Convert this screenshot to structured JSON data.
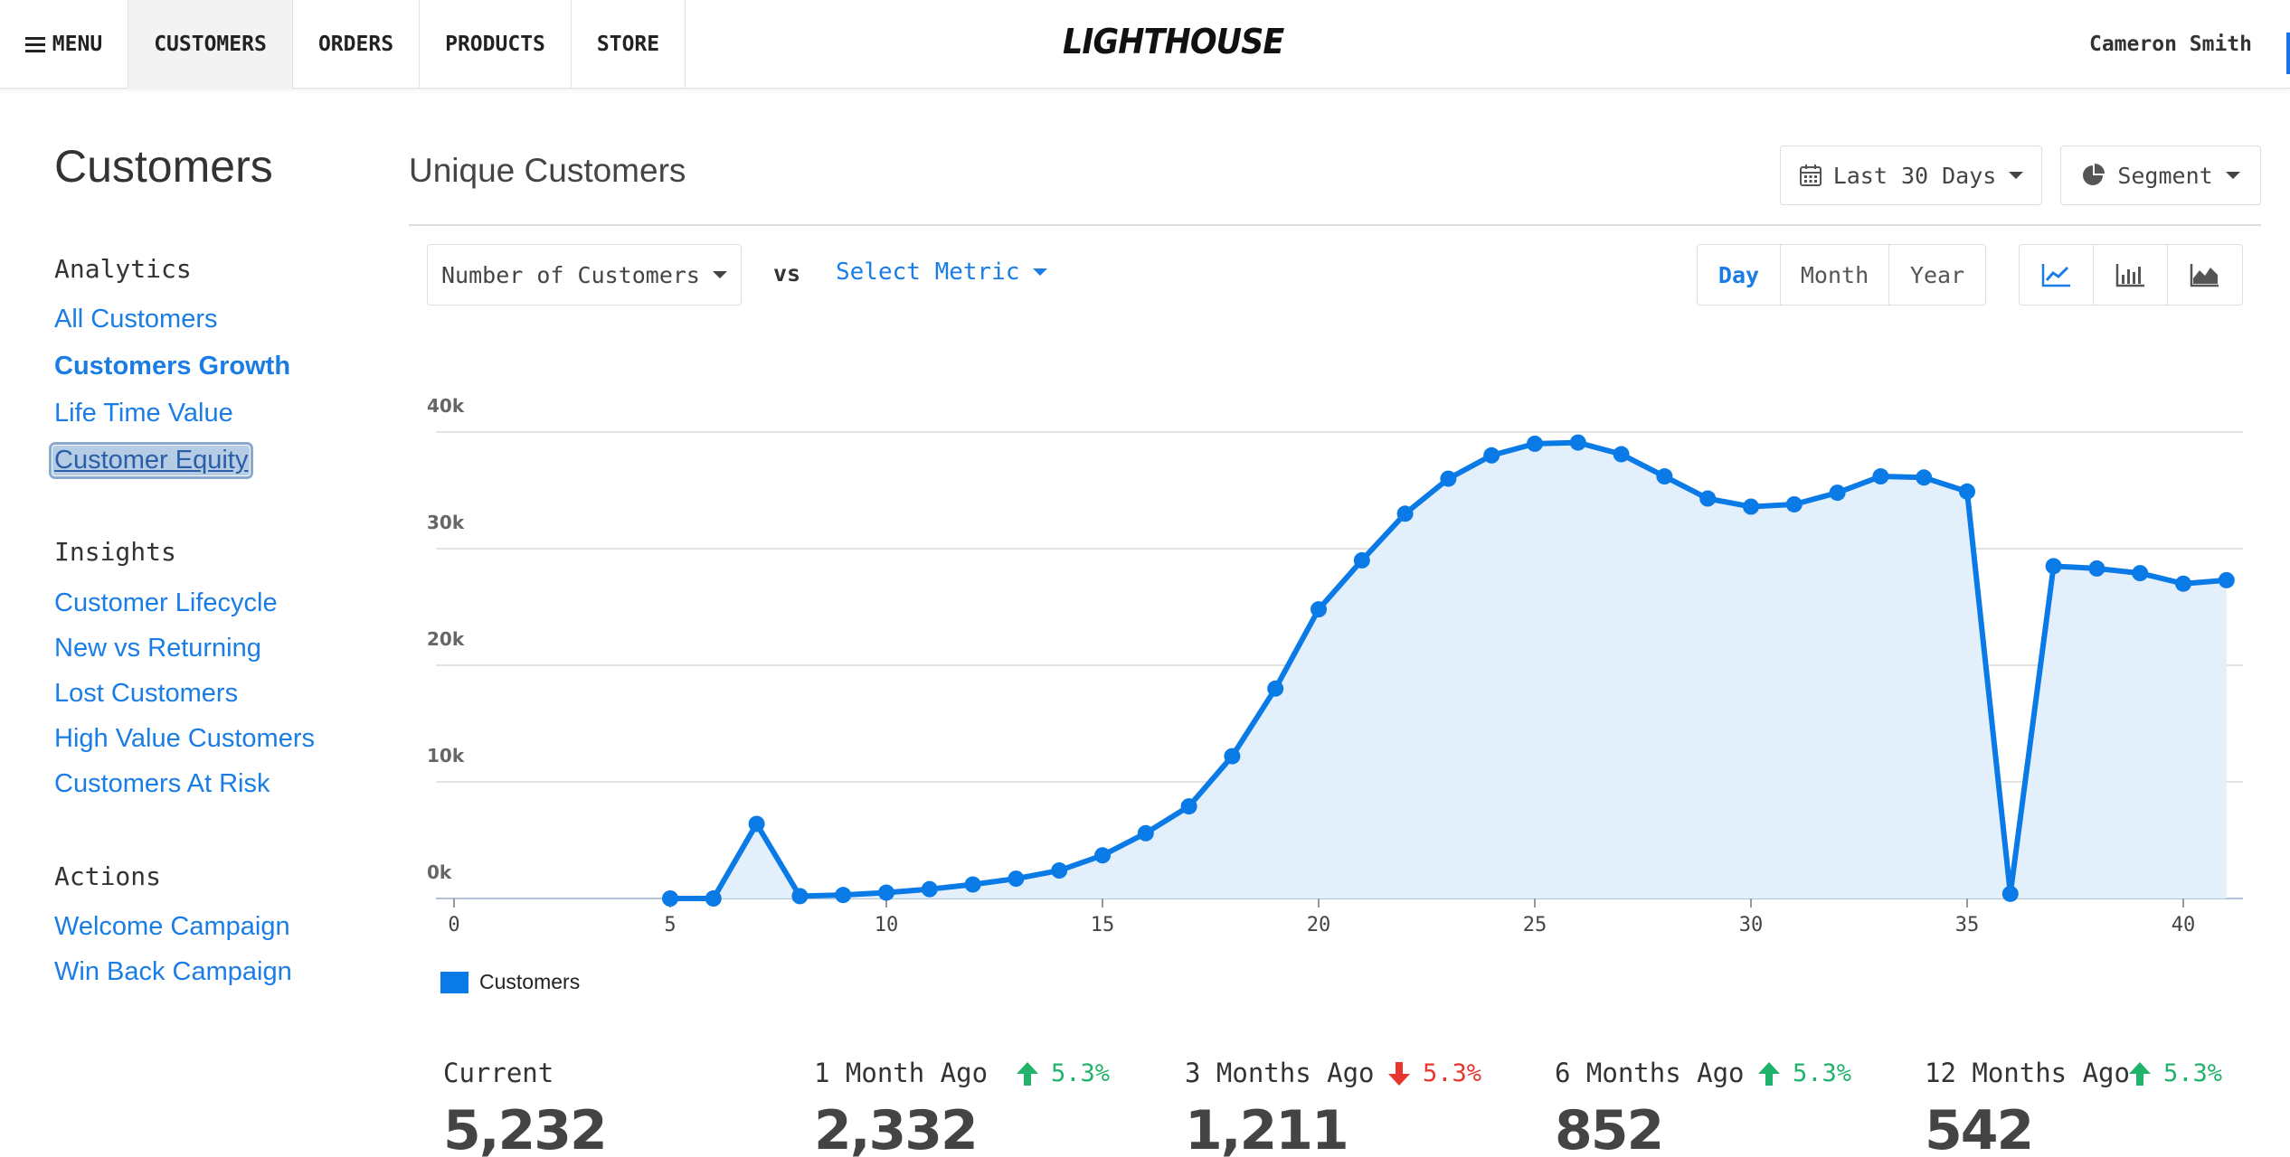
{
  "nav": {
    "menu_label": "MENU",
    "items": [
      {
        "label": "CUSTOMERS",
        "active": true
      },
      {
        "label": "ORDERS",
        "active": false
      },
      {
        "label": "PRODUCTS",
        "active": false
      },
      {
        "label": "STORE",
        "active": false
      }
    ],
    "logo": "LIGHTHOUSE",
    "user_name": "Cameron Smith"
  },
  "sidebar": {
    "title": "Customers",
    "sections": [
      {
        "heading": "Analytics",
        "links": [
          "All Customers",
          "Customers Growth",
          "Life Time Value",
          "Customer Equity"
        ]
      },
      {
        "heading": "Insights",
        "links": [
          "Customer Lifecycle",
          "New vs Returning",
          "Lost Customers",
          "High Value Customers",
          "Customers At Risk"
        ]
      },
      {
        "heading": "Actions",
        "links": [
          "Welcome Campaign",
          "Win Back Campaign"
        ]
      }
    ],
    "active_link": "Customers Growth",
    "selected_link": "Customer Equity"
  },
  "header": {
    "title": "Unique Customers",
    "date_range": "Last 30 Days",
    "segment": "Segment"
  },
  "controls": {
    "metric": "Number of Customers",
    "vs_label": "vs",
    "compare_metric": "Select Metric",
    "periods": [
      "Day",
      "Month",
      "Year"
    ],
    "active_period": "Day",
    "chart_types": [
      "line-chart-icon",
      "bar-chart-icon",
      "area-chart-icon"
    ],
    "active_chart_type": "line-chart-icon"
  },
  "colors": {
    "accent": "#1a7de6",
    "series": "#0a7ae6",
    "area_fill": "#e3effb",
    "up": "#21b36b",
    "down": "#e8352e"
  },
  "chart_data": {
    "type": "line",
    "series": [
      {
        "name": "Customers",
        "x": [
          5,
          6,
          7,
          8,
          9,
          10,
          11,
          12,
          13,
          14,
          15,
          16,
          17,
          18,
          19,
          20,
          21,
          22,
          23,
          24,
          25,
          26,
          27,
          28,
          29,
          30,
          31,
          32,
          33,
          34,
          35,
          36,
          37,
          38,
          39,
          40,
          41
        ],
        "values": [
          0,
          0,
          6400,
          200,
          300,
          500,
          800,
          1200,
          1700,
          2400,
          3700,
          5600,
          7900,
          12200,
          18000,
          24800,
          29000,
          33000,
          36000,
          38000,
          39000,
          39100,
          38100,
          36200,
          34300,
          33600,
          33800,
          34800,
          36200,
          36100,
          34900,
          400,
          28500,
          28300,
          27900,
          27000,
          27300
        ]
      }
    ],
    "xlim": [
      0,
      41
    ],
    "ylim": [
      0,
      40000
    ],
    "x_ticks": [
      0,
      5,
      10,
      15,
      20,
      25,
      30,
      35,
      40
    ],
    "y_ticks": [
      {
        "value": 0,
        "label": "0k"
      },
      {
        "value": 10000,
        "label": "10k"
      },
      {
        "value": 20000,
        "label": "20k"
      },
      {
        "value": 30000,
        "label": "30k"
      },
      {
        "value": 40000,
        "label": "40k"
      }
    ],
    "grid": true,
    "legend": "bottom-left",
    "fill": "area"
  },
  "stats": [
    {
      "label": "Current",
      "value": "5,232"
    },
    {
      "label": "1 Month Ago",
      "value": "2,332",
      "change": "5.3%",
      "direction": "up"
    },
    {
      "label": "3 Months Ago",
      "value": "1,211",
      "change": "5.3%",
      "direction": "down"
    },
    {
      "label": "6 Months Ago",
      "value": "852",
      "change": "5.3%",
      "direction": "up"
    },
    {
      "label": "12 Months Ago",
      "value": "542",
      "change": "5.3%",
      "direction": "up"
    }
  ]
}
